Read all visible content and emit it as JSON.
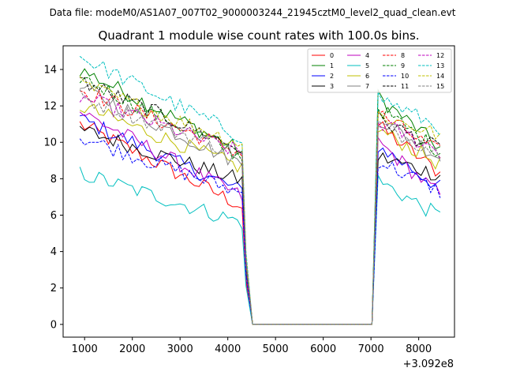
{
  "suptitle": "Data file: modeM0/AS1A07_007T02_9000003244_21945cztM0_level2_quad_clean.evt",
  "chart_data": {
    "type": "line",
    "title": "Quadrant 1 module wise count rates with 100.0s bins.",
    "xlabel": "",
    "ylabel": "",
    "x_offset_label": "+3.092e8",
    "xlim": [
      550,
      8750
    ],
    "ylim": [
      -0.7,
      15.3
    ],
    "xticks": [
      1000,
      2000,
      3000,
      4000,
      5000,
      6000,
      7000,
      8000
    ],
    "xtick_labels": [
      "1000",
      "2000",
      "3000",
      "4000",
      "5000",
      "6000",
      "7000",
      "8000"
    ],
    "yticks": [
      0,
      2,
      4,
      6,
      8,
      10,
      12,
      14
    ],
    "ytick_labels": [
      "0",
      "2",
      "4",
      "6",
      "8",
      "10",
      "12",
      "14"
    ],
    "grid": false,
    "legend_position": "top-right",
    "gap": {
      "start": 4520,
      "end": 7020,
      "value": 0
    },
    "series": [
      {
        "name": "0",
        "color": "#ff0000",
        "dash": "solid",
        "level_start": 11.0,
        "level_end": 6.5,
        "drop_value": 6.0,
        "level2_start": 10.9,
        "level2_end": 8.3
      },
      {
        "name": "1",
        "color": "#008000",
        "dash": "solid",
        "level_start": 14.0,
        "level_end": 9.5,
        "drop_value": 9.0,
        "level2_start": 12.5,
        "level2_end": 9.7
      },
      {
        "name": "2",
        "color": "#0000ff",
        "dash": "solid",
        "level_start": 11.3,
        "level_end": 7.3,
        "drop_value": 7.0,
        "level2_start": 9.8,
        "level2_end": 7.5
      },
      {
        "name": "3",
        "color": "#000000",
        "dash": "solid",
        "level_start": 10.7,
        "level_end": 7.9,
        "drop_value": 7.5,
        "level2_start": 9.2,
        "level2_end": 8.2
      },
      {
        "name": "4",
        "color": "#bf00bf",
        "dash": "solid",
        "level_start": 11.7,
        "level_end": 7.0,
        "drop_value": 6.8,
        "level2_start": 10.0,
        "level2_end": 7.1
      },
      {
        "name": "5",
        "color": "#00bfbf",
        "dash": "solid",
        "level_start": 8.3,
        "level_end": 5.6,
        "drop_value": 5.3,
        "level2_start": 7.9,
        "level2_end": 5.9
      },
      {
        "name": "6",
        "color": "#bfbf00",
        "dash": "solid",
        "level_start": 12.0,
        "level_end": 8.6,
        "drop_value": 8.3,
        "level2_start": 10.7,
        "level2_end": 8.8
      },
      {
        "name": "7",
        "color": "#808080",
        "dash": "solid",
        "level_start": 13.0,
        "level_end": 8.8,
        "drop_value": 8.5,
        "level2_start": 11.3,
        "level2_end": 9.2
      },
      {
        "name": "8",
        "color": "#ff0000",
        "dash": "dashed",
        "level_start": 12.9,
        "level_end": 9.4,
        "drop_value": 9.0,
        "level2_start": 11.6,
        "level2_end": 9.4
      },
      {
        "name": "9",
        "color": "#008000",
        "dash": "dashed",
        "level_start": 13.6,
        "level_end": 9.2,
        "drop_value": 8.8,
        "level2_start": 11.9,
        "level2_end": 9.5
      },
      {
        "name": "10",
        "color": "#0000ff",
        "dash": "dashed",
        "level_start": 10.3,
        "level_end": 7.2,
        "drop_value": 7.0,
        "level2_start": 9.0,
        "level2_end": 7.3
      },
      {
        "name": "11",
        "color": "#000000",
        "dash": "dashed",
        "level_start": 13.4,
        "level_end": 9.6,
        "drop_value": 9.4,
        "level2_start": 11.3,
        "level2_end": 9.6
      },
      {
        "name": "12",
        "color": "#bf00bf",
        "dash": "dashed",
        "level_start": 12.5,
        "level_end": 9.4,
        "drop_value": 9.2,
        "level2_start": 11.1,
        "level2_end": 9.5
      },
      {
        "name": "13",
        "color": "#00bfbf",
        "dash": "dashed",
        "level_start": 14.7,
        "level_end": 10.3,
        "drop_value": 10.1,
        "level2_start": 12.5,
        "level2_end": 10.8
      },
      {
        "name": "14",
        "color": "#bfbf00",
        "dash": "dashed",
        "level_start": 13.2,
        "level_end": 9.9,
        "drop_value": 9.6,
        "level2_start": 11.5,
        "level2_end": 10.4
      },
      {
        "name": "15",
        "color": "#808080",
        "dash": "dashed",
        "level_start": 12.5,
        "level_end": 9.3,
        "drop_value": 9.0,
        "level2_start": 11.0,
        "level2_end": 9.4
      }
    ]
  }
}
